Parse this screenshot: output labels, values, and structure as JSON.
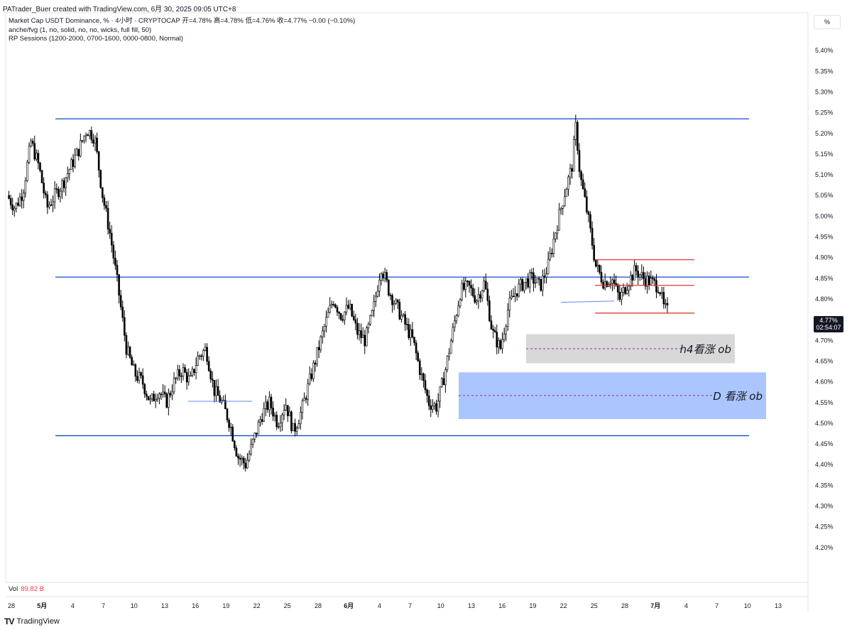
{
  "header": {
    "created": "PATrader_Buer created with TradingView.com, 6月 30, 2025 09:05 UTC+8",
    "symbol_line": "Market Cap USDT Dominance, % · 4小时 · CRYPTOCAP  开=4.78%  高=4.78%  低=4.76%  收=4.77%  −0.00 (−0.10%)",
    "indicator1": "anche/fvg (1, no, solid, no, no, wicks, full fill, 50)",
    "indicator2": "RP Sessions (1200-2000, 0700-1600, 0000-0800, Normal)"
  },
  "axis": {
    "unit": "%"
  },
  "price_tag": {
    "value": "4.77%",
    "countdown": "02:54:07"
  },
  "volume": {
    "label": "Vol",
    "value": "89.82 B"
  },
  "brand": {
    "logo": "TV",
    "name": "TradingView"
  },
  "chart_data": {
    "type": "candlestick",
    "ylim": [
      4.15,
      5.45
    ],
    "yticks": [
      "5.40%",
      "5.35%",
      "5.30%",
      "5.25%",
      "5.20%",
      "5.15%",
      "5.10%",
      "5.05%",
      "5.00%",
      "4.95%",
      "4.90%",
      "4.85%",
      "4.80%",
      "4.75%",
      "4.70%",
      "4.65%",
      "4.60%",
      "4.55%",
      "4.50%",
      "4.45%",
      "4.40%",
      "4.35%",
      "4.30%",
      "4.25%",
      "4.20%"
    ],
    "xticks": [
      "28",
      "5月",
      "4",
      "7",
      "10",
      "13",
      "16",
      "19",
      "22",
      "25",
      "28",
      "6月",
      "4",
      "7",
      "10",
      "13",
      "16",
      "19",
      "22",
      "25",
      "28",
      "7月",
      "4",
      "7",
      "10",
      "13"
    ],
    "close_path": [
      [
        0,
        5.05
      ],
      [
        2,
        5.02
      ],
      [
        4,
        5.06
      ],
      [
        6,
        5.18
      ],
      [
        8,
        5.12
      ],
      [
        10,
        5.02
      ],
      [
        12,
        5.05
      ],
      [
        14,
        5.08
      ],
      [
        16,
        5.12
      ],
      [
        18,
        5.16
      ],
      [
        20,
        5.21
      ],
      [
        22,
        5.19
      ],
      [
        24,
        5.05
      ],
      [
        26,
        4.95
      ],
      [
        28,
        4.82
      ],
      [
        30,
        4.68
      ],
      [
        32,
        4.62
      ],
      [
        34,
        4.6
      ],
      [
        36,
        4.55
      ],
      [
        38,
        4.58
      ],
      [
        40,
        4.55
      ],
      [
        42,
        4.6
      ],
      [
        44,
        4.63
      ],
      [
        46,
        4.6
      ],
      [
        48,
        4.66
      ],
      [
        50,
        4.68
      ],
      [
        52,
        4.58
      ],
      [
        54,
        4.55
      ],
      [
        56,
        4.5
      ],
      [
        58,
        4.42
      ],
      [
        60,
        4.4
      ],
      [
        62,
        4.46
      ],
      [
        64,
        4.52
      ],
      [
        66,
        4.55
      ],
      [
        68,
        4.5
      ],
      [
        70,
        4.55
      ],
      [
        72,
        4.48
      ],
      [
        74,
        4.53
      ],
      [
        76,
        4.6
      ],
      [
        78,
        4.67
      ],
      [
        80,
        4.74
      ],
      [
        82,
        4.8
      ],
      [
        84,
        4.76
      ],
      [
        86,
        4.78
      ],
      [
        88,
        4.72
      ],
      [
        90,
        4.7
      ],
      [
        92,
        4.77
      ],
      [
        94,
        4.88
      ],
      [
        96,
        4.82
      ],
      [
        98,
        4.78
      ],
      [
        100,
        4.74
      ],
      [
        102,
        4.7
      ],
      [
        104,
        4.62
      ],
      [
        106,
        4.55
      ],
      [
        108,
        4.54
      ],
      [
        110,
        4.62
      ],
      [
        112,
        4.72
      ],
      [
        114,
        4.82
      ],
      [
        116,
        4.83
      ],
      [
        118,
        4.8
      ],
      [
        120,
        4.84
      ],
      [
        122,
        4.72
      ],
      [
        124,
        4.68
      ],
      [
        126,
        4.78
      ],
      [
        128,
        4.82
      ],
      [
        130,
        4.84
      ],
      [
        132,
        4.85
      ],
      [
        134,
        4.83
      ],
      [
        136,
        4.88
      ],
      [
        138,
        4.97
      ],
      [
        140,
        5.05
      ],
      [
        142,
        5.12
      ],
      [
        143,
        5.22
      ],
      [
        144,
        5.1
      ],
      [
        146,
        5.0
      ],
      [
        148,
        4.88
      ],
      [
        150,
        4.84
      ],
      [
        152,
        4.85
      ],
      [
        154,
        4.8
      ],
      [
        156,
        4.84
      ],
      [
        158,
        4.87
      ],
      [
        160,
        4.85
      ],
      [
        162,
        4.84
      ],
      [
        164,
        4.83
      ],
      [
        165,
        4.78
      ],
      [
        166,
        4.77
      ]
    ],
    "hlines": [
      5.235,
      4.853,
      4.47
    ],
    "red_levels": [
      4.895,
      4.833,
      4.766
    ],
    "zones": [
      {
        "label": "h4看涨 ob",
        "top": 4.715,
        "bottom": 4.645,
        "mid": 4.68,
        "color": "#d6d6d6"
      },
      {
        "label": "D 看涨 ob",
        "top": 4.623,
        "bottom": 4.51,
        "mid": 4.567,
        "color": "#a7c3ff"
      }
    ]
  }
}
